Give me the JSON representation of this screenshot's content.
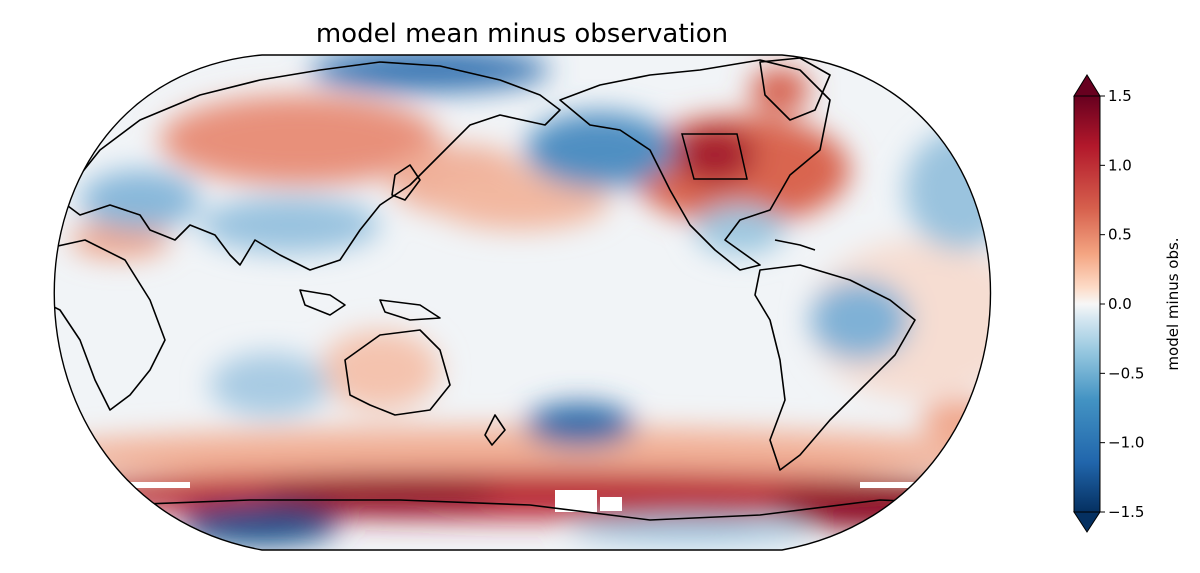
{
  "title": "model mean minus observation",
  "colors": {
    "strong_negative": "#053061",
    "negative": "#4393c3",
    "neutral": "#f7f7f7",
    "positive": "#f4a582",
    "strong_positive": "#67001f",
    "coastline": "#000000"
  },
  "chart_data": {
    "type": "heatmap",
    "projection": "Robinson (Pacific-centered)",
    "title": "model mean minus observation",
    "colorbar": {
      "label": "model minus obs.",
      "range": [
        -1.5,
        1.5
      ],
      "extend": "both",
      "colormap": "RdBu_r",
      "ticks": [
        "1.5",
        "1.0",
        "0.5",
        "0.0",
        "−0.5",
        "−1.0",
        "−1.5"
      ]
    },
    "anomaly_regions": [
      {
        "name": "central-north-america",
        "value": 1.3
      },
      {
        "name": "north-pacific",
        "value": -1.0
      },
      {
        "name": "north-atlantic",
        "value": -0.9
      },
      {
        "name": "southern-ocean",
        "value": 1.4
      },
      {
        "name": "west-antarctica",
        "value": -1.3
      },
      {
        "name": "south-pacific",
        "value": -0.9
      },
      {
        "name": "eurasia",
        "value": 0.7
      },
      {
        "name": "arctic",
        "value": -1.2
      }
    ],
    "highlight_box": {
      "label": "",
      "region": "central North America"
    }
  }
}
